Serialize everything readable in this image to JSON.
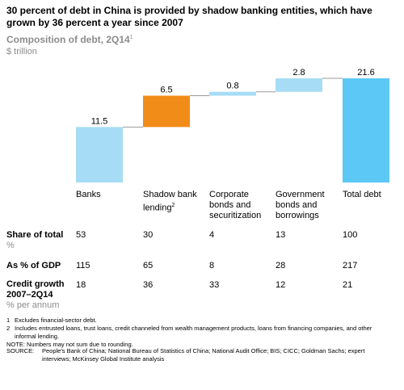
{
  "header": {
    "title": "30 percent of debt in China is provided by shadow banking entities, which have grown by 36 percent a year since 2007",
    "subtitle": "Composition of debt, 2Q14",
    "subtitle_sup": "1",
    "unit": "$ trillion"
  },
  "chart_data": {
    "type": "bar",
    "categories": [
      "Banks",
      "Shadow bank lending",
      "Corporate bonds and securitization",
      "Government bonds and borrowings",
      "Total debt"
    ],
    "values": [
      11.5,
      6.5,
      0.8,
      2.8,
      21.6
    ],
    "value_labels": [
      "11.5",
      "6.5",
      "0.8",
      "2.8",
      "21.6"
    ],
    "waterfall": true,
    "ylim": [
      0,
      21.6
    ],
    "colors": [
      "#a6dcf5",
      "#f28c18",
      "#a6dcf5",
      "#a6dcf5",
      "#5bc8f5"
    ],
    "title": "Composition of debt, 2Q14",
    "xlabel": "",
    "ylabel": "$ trillion"
  },
  "categories_display": {
    "banks": "Banks",
    "shadow_main": "Shadow bank lending",
    "shadow_sup": "2",
    "corporate": "Corporate bonds and securitization",
    "government": "Government bonds and borrowings",
    "total": "Total debt"
  },
  "rows": {
    "share": {
      "label": "Share of total",
      "unit": "%",
      "values": [
        "53",
        "30",
        "4",
        "13",
        "100"
      ]
    },
    "gdp": {
      "label": "As % of GDP",
      "values": [
        "115",
        "65",
        "8",
        "28",
        "217"
      ]
    },
    "growth": {
      "label": "Credit growth 2007–2Q14",
      "unit": "% per annum",
      "values": [
        "18",
        "36",
        "33",
        "12",
        "21"
      ]
    }
  },
  "footnotes": {
    "n1_num": "1",
    "n1": "Excludes financial-sector debt.",
    "n2_num": "2",
    "n2": "Includes entrusted loans, trust loans, credit channeled from wealth management products, loans from financing companies, and other informal lending.",
    "note": "NOTE: Numbers may not sum due to rounding.",
    "source_label": "SOURCE:",
    "source": "People's Bank of China; National Bureau of Statistics of China; National Audit Office; BIS; CICC; Goldman Sachs; expert interviews; McKinsey Global Institute analysis"
  }
}
